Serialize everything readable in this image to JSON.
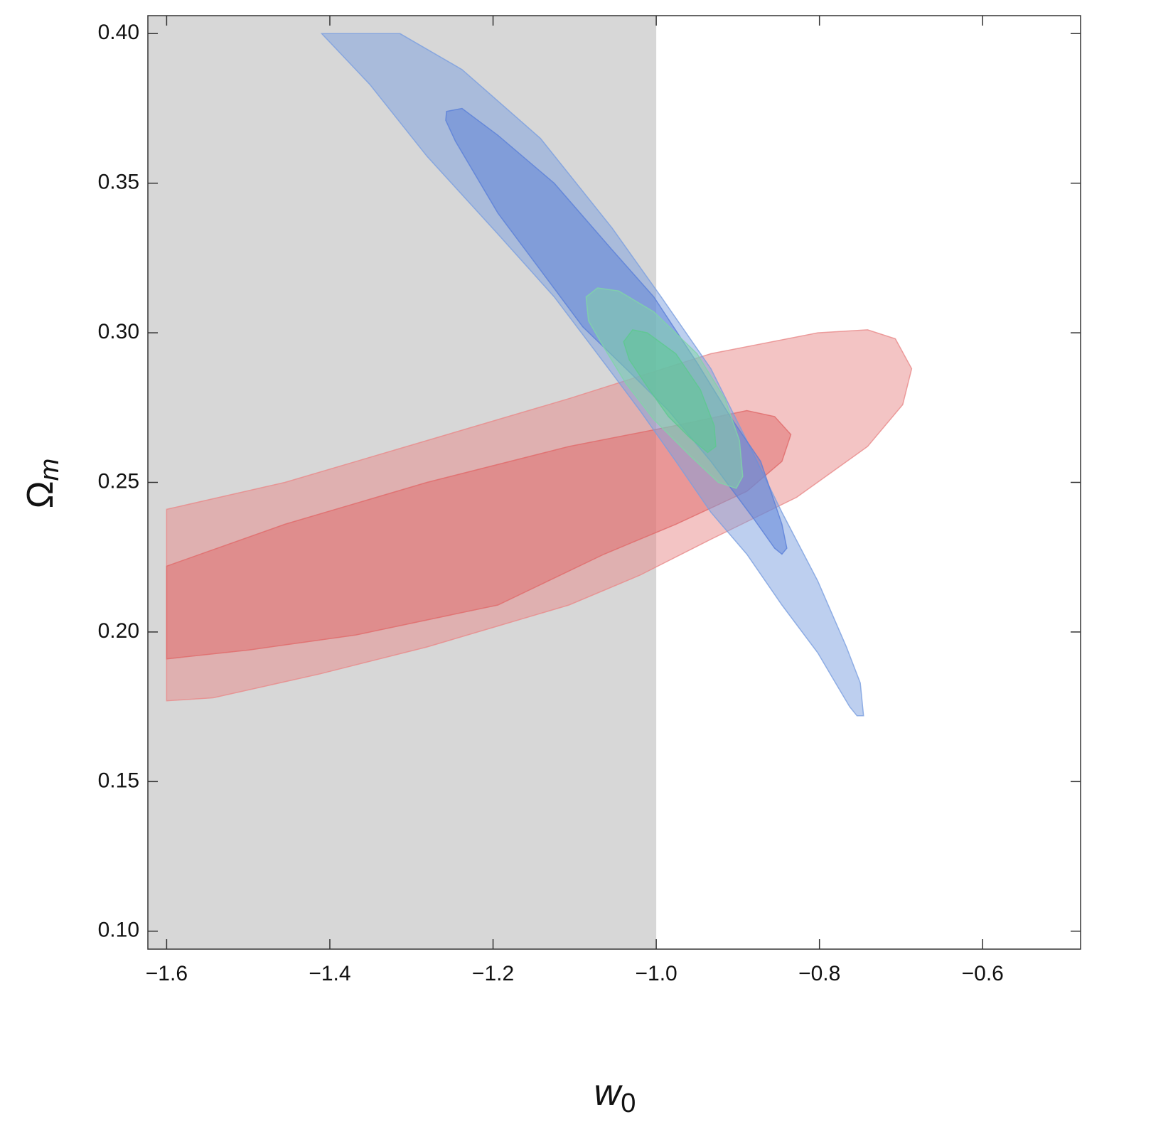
{
  "chart_data": {
    "type": "contour",
    "xlabel": {
      "text": "w",
      "sub": "0"
    },
    "ylabel": {
      "text": "Ω",
      "sub": "m"
    },
    "xlim": [
      -1.623,
      -0.48
    ],
    "ylim": [
      0.094,
      0.406
    ],
    "xticks": [
      {
        "value": -1.6,
        "label": "−1.6"
      },
      {
        "value": -1.4,
        "label": "−1.4"
      },
      {
        "value": -1.2,
        "label": "−1.2"
      },
      {
        "value": -1.0,
        "label": "−1.0"
      },
      {
        "value": -0.8,
        "label": "−0.8"
      },
      {
        "value": -0.6,
        "label": "−0.6"
      }
    ],
    "yticks": [
      {
        "value": 0.1,
        "label": "0.10"
      },
      {
        "value": 0.15,
        "label": "0.15"
      },
      {
        "value": 0.2,
        "label": "0.20"
      },
      {
        "value": 0.25,
        "label": "0.25"
      },
      {
        "value": 0.3,
        "label": "0.30"
      },
      {
        "value": 0.35,
        "label": "0.35"
      },
      {
        "value": 0.4,
        "label": "0.40"
      }
    ],
    "shaded_region": {
      "xmax": -1.0,
      "color": "#d7d7d7"
    },
    "series": [
      {
        "color": "#e88a8a",
        "x": [
          -1.6,
          -1.455,
          -1.281,
          -1.107,
          -0.933,
          -0.802,
          -0.741,
          -0.707,
          -0.687,
          -0.698,
          -0.741,
          -0.828,
          -0.933,
          -1.02,
          -1.107,
          -1.194,
          -1.281,
          -1.412,
          -1.543,
          -1.6
        ],
        "y": [
          0.241,
          0.25,
          0.264,
          0.278,
          0.293,
          0.3,
          0.301,
          0.298,
          0.288,
          0.276,
          0.262,
          0.245,
          0.231,
          0.219,
          0.209,
          0.202,
          0.195,
          0.186,
          0.178,
          0.177
        ]
      },
      {
        "color": "#e06a6a",
        "x": [
          -1.6,
          -1.455,
          -1.281,
          -1.107,
          -0.976,
          -0.889,
          -0.855,
          -0.835,
          -0.846,
          -0.889,
          -0.976,
          -1.064,
          -1.194,
          -1.368,
          -1.499,
          -1.6
        ],
        "y": [
          0.222,
          0.236,
          0.25,
          0.262,
          0.269,
          0.274,
          0.272,
          0.266,
          0.257,
          0.247,
          0.236,
          0.226,
          0.209,
          0.199,
          0.194,
          0.191
        ]
      },
      {
        "color": "#7b9fe0",
        "x": [
          -1.41,
          -1.314,
          -1.238,
          -1.142,
          -1.054,
          -0.994,
          -0.933,
          -0.889,
          -0.846,
          -0.802,
          -0.767,
          -0.75,
          -0.746,
          -0.754,
          -0.763,
          -0.776,
          -0.802,
          -0.846,
          -0.889,
          -0.933,
          -0.976,
          -1.02,
          -1.064,
          -1.125,
          -1.194,
          -1.281,
          -1.351
        ],
        "y": [
          0.4,
          0.4,
          0.388,
          0.365,
          0.335,
          0.312,
          0.288,
          0.264,
          0.24,
          0.217,
          0.195,
          0.183,
          0.172,
          0.172,
          0.175,
          0.181,
          0.193,
          0.209,
          0.226,
          0.24,
          0.257,
          0.274,
          0.29,
          0.312,
          0.333,
          0.359,
          0.383
        ]
      },
      {
        "color": "#5a7fd8",
        "x": [
          -1.257,
          -1.238,
          -1.194,
          -1.125,
          -1.055,
          -1.003,
          -0.95,
          -0.907,
          -0.872,
          -0.846,
          -0.84,
          -0.846,
          -0.855,
          -0.881,
          -0.933,
          -0.985,
          -1.037,
          -1.09,
          -1.142,
          -1.194,
          -1.246,
          -1.258
        ],
        "y": [
          0.374,
          0.375,
          0.366,
          0.35,
          0.328,
          0.312,
          0.29,
          0.271,
          0.257,
          0.236,
          0.228,
          0.226,
          0.228,
          0.238,
          0.257,
          0.274,
          0.288,
          0.302,
          0.321,
          0.34,
          0.364,
          0.371
        ]
      },
      {
        "color": "#7fd6a6",
        "x": [
          -1.072,
          -1.046,
          -1.003,
          -0.95,
          -0.916,
          -0.898,
          -0.894,
          -0.902,
          -0.924,
          -0.959,
          -1.003,
          -1.037,
          -1.064,
          -1.083,
          -1.086
        ],
        "y": [
          0.315,
          0.314,
          0.307,
          0.293,
          0.278,
          0.264,
          0.252,
          0.248,
          0.25,
          0.259,
          0.271,
          0.283,
          0.295,
          0.304,
          0.312
        ]
      },
      {
        "color": "#5cc98f",
        "x": [
          -1.029,
          -1.011,
          -0.976,
          -0.946,
          -0.929,
          -0.927,
          -0.937,
          -0.959,
          -0.985,
          -1.011,
          -1.033,
          -1.04
        ],
        "y": [
          0.301,
          0.3,
          0.293,
          0.281,
          0.269,
          0.262,
          0.26,
          0.265,
          0.272,
          0.282,
          0.291,
          0.297
        ]
      }
    ]
  }
}
